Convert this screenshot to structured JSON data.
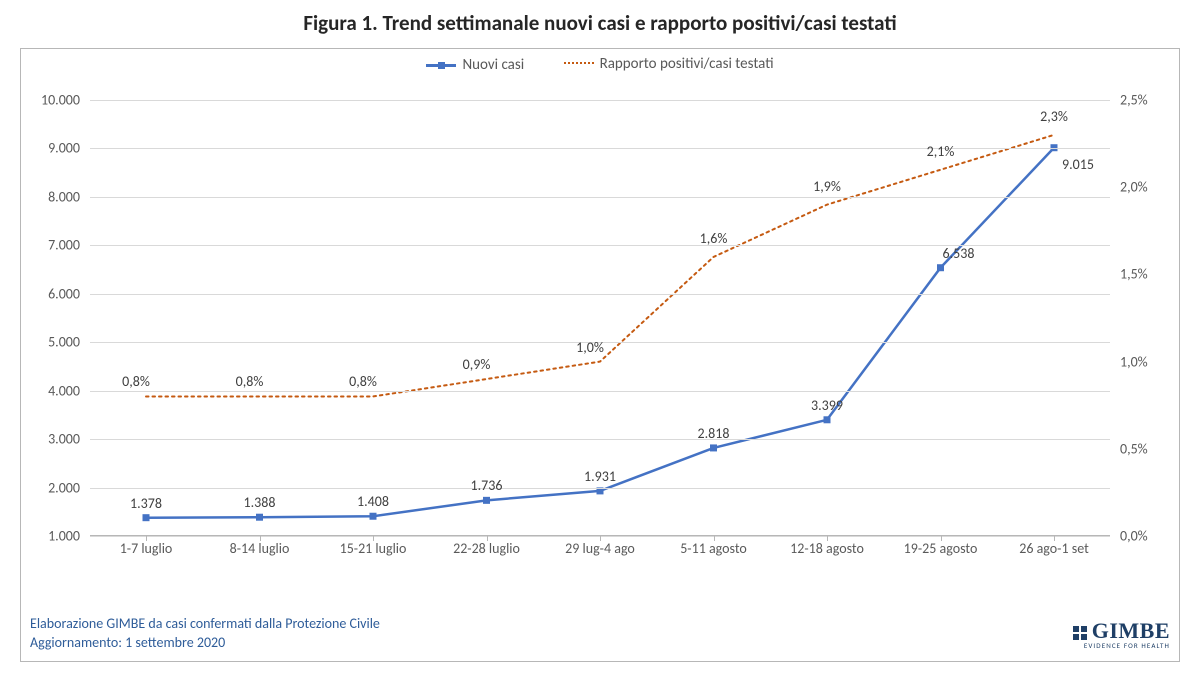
{
  "title": "Figura 1. Trend settimanale nuovi casi e rapporto positivi/casi testati",
  "chart": {
    "type": "line-dual-axis",
    "background_color": "#ffffff",
    "border_color": "#b7b7b7",
    "grid_color": "#d9d9d9",
    "categories": [
      "1-7 luglio",
      "8-14 luglio",
      "15-21 luglio",
      "22-28 luglio",
      "29 lug-4 ago",
      "5-11 agosto",
      "12-18 agosto",
      "19-25 agosto",
      "26 ago-1 set"
    ],
    "y_left": {
      "min": 1000,
      "max": 10000,
      "step": 1000,
      "format": "italian-thousands"
    },
    "y_right": {
      "min": 0.0,
      "max": 2.5,
      "step": 0.5,
      "suffix": "%"
    },
    "series": [
      {
        "name": "Nuovi casi",
        "axis": "left",
        "color": "#4472c4",
        "line_width": 2.5,
        "marker": "square",
        "marker_size": 7,
        "values": [
          1378,
          1388,
          1408,
          1736,
          1931,
          2818,
          3399,
          6538,
          9015
        ],
        "labels": [
          "1.378",
          "1.388",
          "1.408",
          "1.736",
          "1.931",
          "2.818",
          "3.399",
          "6.538",
          "9.015"
        ]
      },
      {
        "name": "Rapporto positivi/casi testati",
        "axis": "right",
        "color": "#c55a11",
        "line_width": 2,
        "dash": "dot",
        "marker": "none",
        "values": [
          0.8,
          0.8,
          0.8,
          0.9,
          1.0,
          1.6,
          1.9,
          2.1,
          2.3
        ],
        "labels": [
          "0,8%",
          "0,8%",
          "0,8%",
          "0,9%",
          "1,0%",
          "1,6%",
          "1,9%",
          "2,1%",
          "2,3%"
        ]
      }
    ],
    "label_fontsize": 14,
    "label_color": "#404040",
    "axis_fontsize": 14,
    "axis_color": "#595959"
  },
  "legend": {
    "s1": "Nuovi casi",
    "s2": "Rapporto positivi/casi testati"
  },
  "footer": {
    "line1": "Elaborazione GIMBE da casi confermati dalla Protezione Civile",
    "line2": "Aggiornamento: 1 settembre 2020"
  },
  "logo": {
    "brand": "GIMBE",
    "tagline": "EVIDENCE FOR HEALTH",
    "color": "#1f3f66"
  }
}
